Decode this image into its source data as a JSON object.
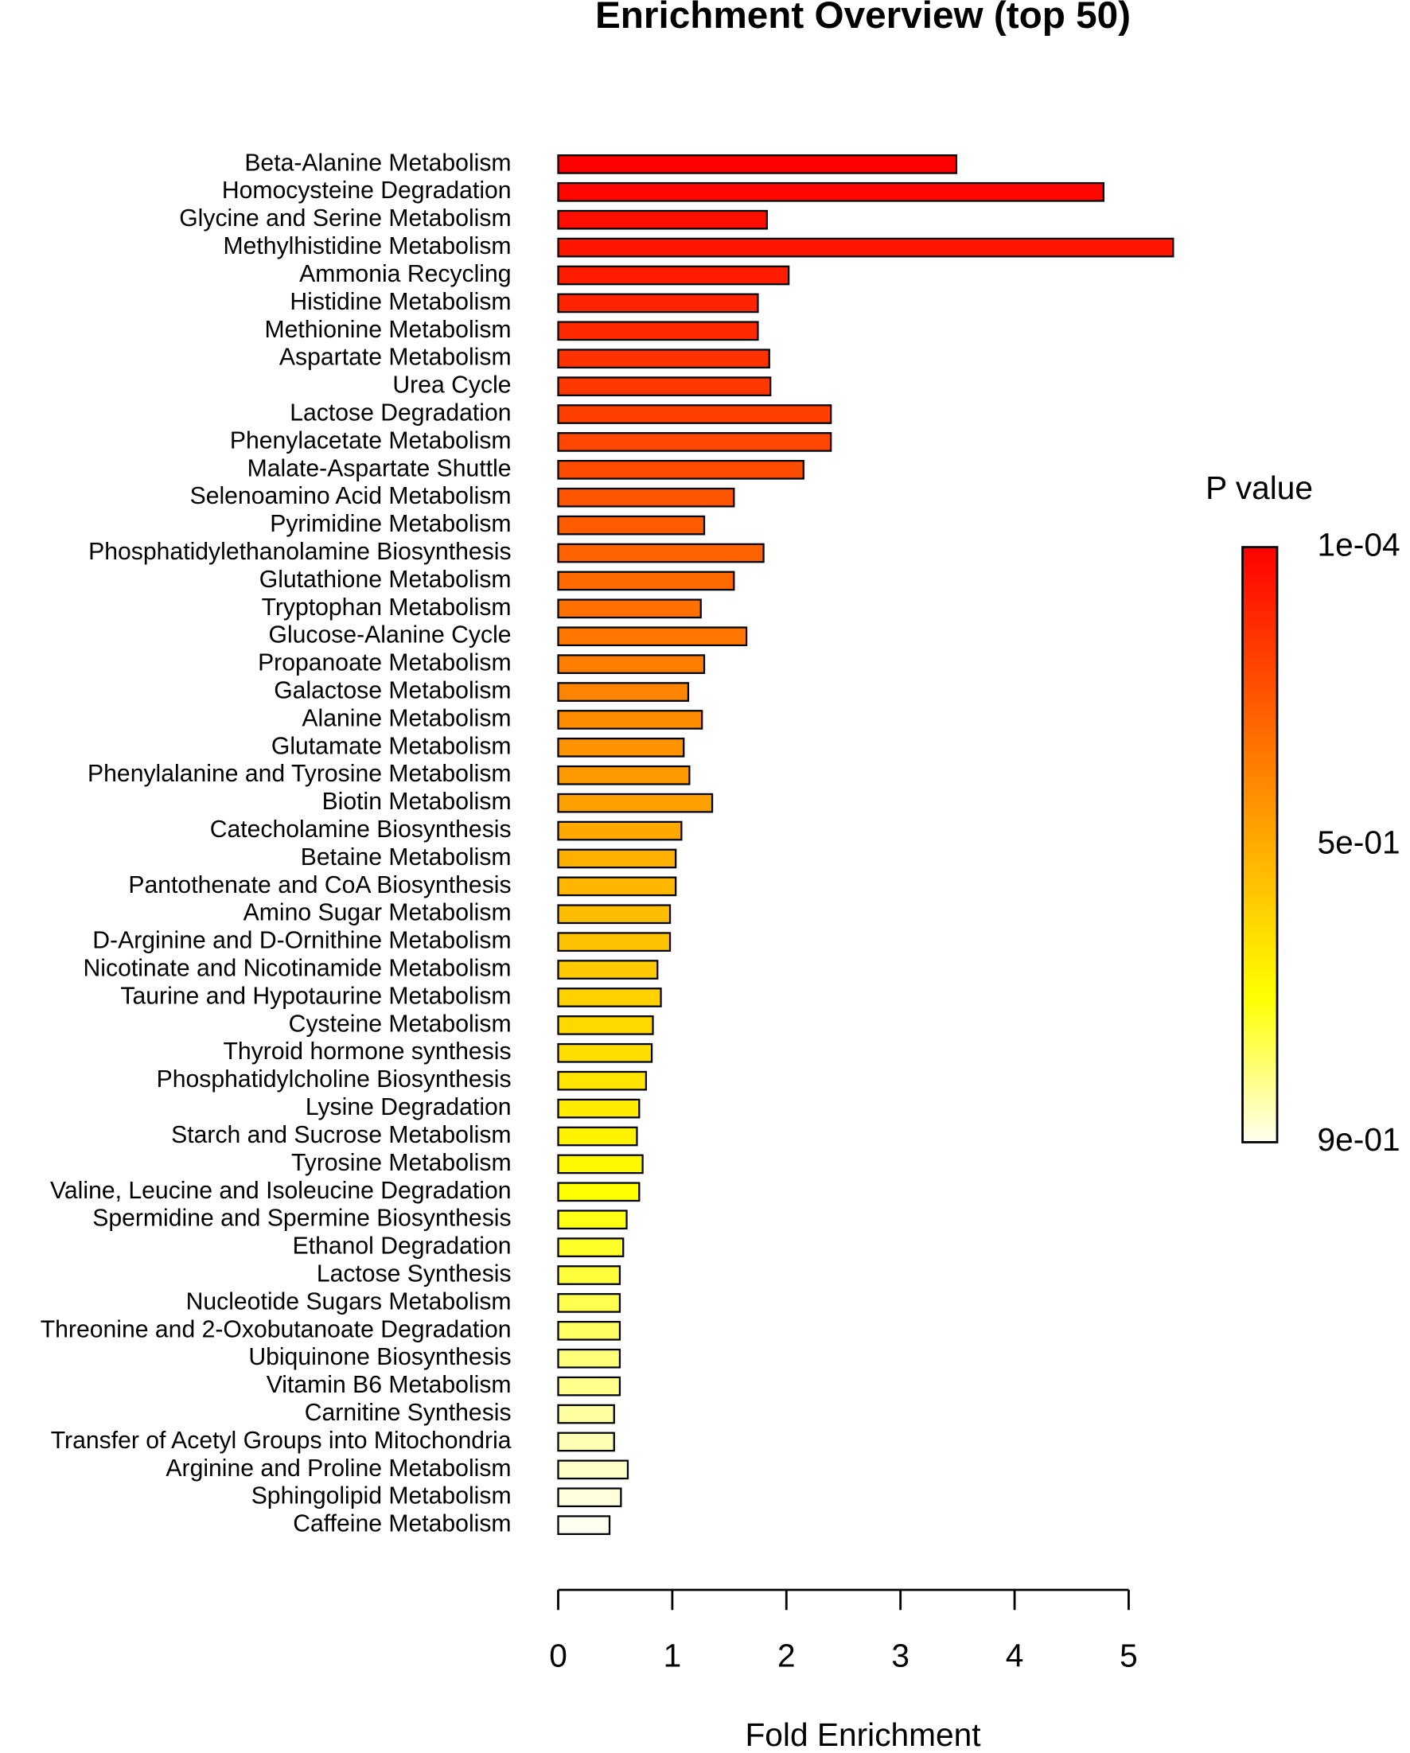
{
  "chart_data": {
    "type": "bar",
    "orientation": "horizontal",
    "title": "Enrichment Overview (top 50)",
    "x_label": "Fold Enrichment",
    "categories": [
      "Beta-Alanine Metabolism",
      "Homocysteine Degradation",
      "Glycine and Serine Metabolism",
      "Methylhistidine Metabolism",
      "Ammonia Recycling",
      "Histidine Metabolism",
      "Methionine Metabolism",
      "Aspartate Metabolism",
      "Urea Cycle",
      "Lactose Degradation",
      "Phenylacetate Metabolism",
      "Malate-Aspartate Shuttle",
      "Selenoamino Acid Metabolism",
      "Pyrimidine Metabolism",
      "Phosphatidylethanolamine Biosynthesis",
      "Glutathione Metabolism",
      "Tryptophan Metabolism",
      "Glucose-Alanine Cycle",
      "Propanoate Metabolism",
      "Galactose Metabolism",
      "Alanine Metabolism",
      "Glutamate Metabolism",
      "Phenylalanine and Tyrosine Metabolism",
      "Biotin Metabolism",
      "Catecholamine Biosynthesis",
      "Betaine Metabolism",
      "Pantothenate and CoA Biosynthesis",
      "Amino Sugar Metabolism",
      "D-Arginine and D-Ornithine Metabolism",
      "Nicotinate and Nicotinamide Metabolism",
      "Taurine and Hypotaurine Metabolism",
      "Cysteine Metabolism",
      "Thyroid hormone synthesis",
      "Phosphatidylcholine Biosynthesis",
      "Lysine Degradation",
      "Starch and Sucrose Metabolism",
      "Tyrosine Metabolism",
      "Valine, Leucine and Isoleucine Degradation",
      "Spermidine and Spermine Biosynthesis",
      "Ethanol Degradation",
      "Lactose Synthesis",
      "Nucleotide Sugars Metabolism",
      "Threonine and 2-Oxobutanoate Degradation",
      "Ubiquinone Biosynthesis",
      "Vitamin B6 Metabolism",
      "Carnitine Synthesis",
      "Transfer of Acetyl Groups into Mitochondria",
      "Arginine and Proline Metabolism",
      "Sphingolipid Metabolism",
      "Caffeine Metabolism"
    ],
    "values": [
      3.49,
      4.78,
      1.83,
      5.39,
      2.02,
      1.75,
      1.75,
      1.85,
      1.86,
      2.39,
      2.39,
      2.15,
      1.54,
      1.28,
      1.8,
      1.54,
      1.25,
      1.65,
      1.28,
      1.14,
      1.26,
      1.1,
      1.15,
      1.35,
      1.08,
      1.03,
      1.03,
      0.98,
      0.98,
      0.87,
      0.9,
      0.83,
      0.82,
      0.77,
      0.71,
      0.69,
      0.74,
      0.71,
      0.6,
      0.57,
      0.54,
      0.54,
      0.54,
      0.54,
      0.54,
      0.49,
      0.49,
      0.61,
      0.55,
      0.45
    ],
    "colors": [
      "#FF0000",
      "#FF0700",
      "#FF0E00",
      "#FF1500",
      "#FF1C00",
      "#FF2300",
      "#FF2A00",
      "#FF3100",
      "#FF3800",
      "#FF3F00",
      "#FF4600",
      "#FF4D00",
      "#FF5400",
      "#FF5B00",
      "#FF6200",
      "#FF6900",
      "#FF7000",
      "#FF7700",
      "#FF7E00",
      "#FF8500",
      "#FF8C00",
      "#FF9300",
      "#FF9A00",
      "#FFA100",
      "#FFA800",
      "#FFAF00",
      "#FFB600",
      "#FFBD00",
      "#FFC300",
      "#FFCA00",
      "#FFD100",
      "#FFD800",
      "#FFDE00",
      "#FFE500",
      "#FFEC00",
      "#FFF200",
      "#FFF900",
      "#FFFF00",
      "#FFFF14",
      "#FFFF28",
      "#FFFF3C",
      "#FFFF50",
      "#FFFF64",
      "#FFFF78",
      "#FFFF8C",
      "#FFFFA0",
      "#FFFFB4",
      "#FFFFC8",
      "#FFFFDC",
      "#FFFFF0"
    ],
    "xlim": [
      0,
      5
    ],
    "xticks": [
      0,
      1,
      2,
      3,
      4,
      5
    ],
    "legend": {
      "title": "P value",
      "labels": [
        "1e-04",
        "5e-01",
        "9e-01"
      ]
    }
  }
}
